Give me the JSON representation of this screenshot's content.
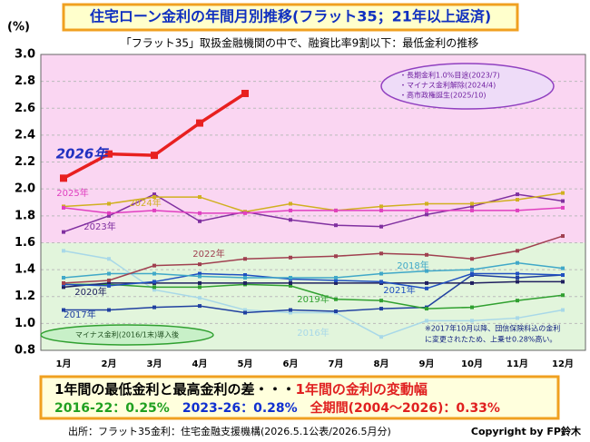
{
  "chart_data": {
    "type": "line",
    "title": "住宅ローン金利の年間月別推移(フラット35；21年以上返済)",
    "subtitle": "「フラット35」取扱金融機関の中で、融資比率9割以下：最低金利の推移",
    "y_label": "(%)",
    "categories": [
      "1月",
      "2月",
      "3月",
      "4月",
      "5月",
      "6月",
      "7月",
      "8月",
      "9月",
      "10月",
      "11月",
      "12月"
    ],
    "ylim": [
      0.8,
      3.0
    ],
    "yticks": [
      {
        "value": 0.8,
        "label": "0.8"
      },
      {
        "value": 1.0,
        "label": "1.0"
      },
      {
        "value": 1.2,
        "label": "1.2"
      },
      {
        "value": 1.4,
        "label": "1.4"
      },
      {
        "value": 1.6,
        "label": "1.6"
      },
      {
        "value": 1.8,
        "label": "1.8"
      },
      {
        "value": 2.0,
        "label": "2.0"
      },
      {
        "value": 2.2,
        "label": "2.2"
      },
      {
        "value": 2.4,
        "label": "2.4"
      },
      {
        "value": 2.6,
        "label": "2.6"
      },
      {
        "value": 2.8,
        "label": "2.8"
      },
      {
        "value": 3.0,
        "label": "3.0"
      }
    ],
    "bands": [
      {
        "from": 1.6,
        "to": 3.0,
        "color": "#fad6f2"
      },
      {
        "from": 0.8,
        "to": 1.6,
        "color": "#e2f5dc"
      }
    ],
    "series": [
      {
        "name": "2016年",
        "color": "#a8d8e8",
        "values": [
          1.54,
          1.48,
          1.25,
          1.19,
          1.1,
          1.08,
          1.08,
          0.9,
          1.02,
          1.02,
          1.04,
          1.1
        ]
      },
      {
        "name": "2017年",
        "color": "#2040a0",
        "values": [
          1.1,
          1.1,
          1.12,
          1.13,
          1.08,
          1.1,
          1.09,
          1.11,
          1.12,
          1.36,
          1.34,
          1.36
        ]
      },
      {
        "name": "2019年",
        "color": "#30a030",
        "values": [
          1.29,
          1.29,
          1.27,
          1.27,
          1.29,
          1.28,
          1.18,
          1.17,
          1.11,
          1.12,
          1.17,
          1.21
        ]
      },
      {
        "name": "2020年",
        "color": "#202060",
        "values": [
          1.27,
          1.3,
          1.3,
          1.3,
          1.3,
          1.3,
          1.3,
          1.3,
          1.3,
          1.3,
          1.31,
          1.31
        ]
      },
      {
        "name": "2021年",
        "color": "#2050c0",
        "values": [
          1.29,
          1.28,
          1.31,
          1.37,
          1.36,
          1.33,
          1.32,
          1.31,
          1.26,
          1.37,
          1.37,
          1.36
        ]
      },
      {
        "name": "2018年",
        "color": "#40a8c8",
        "values": [
          1.34,
          1.37,
          1.37,
          1.35,
          1.34,
          1.34,
          1.34,
          1.37,
          1.39,
          1.4,
          1.45,
          1.41
        ]
      },
      {
        "name": "2022年",
        "color": "#a04050",
        "values": [
          1.3,
          1.32,
          1.43,
          1.44,
          1.48,
          1.49,
          1.5,
          1.52,
          1.51,
          1.48,
          1.54,
          1.65
        ]
      },
      {
        "name": "2023年",
        "color": "#8030a0",
        "values": [
          1.68,
          1.8,
          1.96,
          1.76,
          1.83,
          1.77,
          1.73,
          1.72,
          1.81,
          1.87,
          1.96,
          1.91
        ]
      },
      {
        "name": "2024年",
        "color": "#d0b020",
        "values": [
          1.87,
          1.89,
          1.94,
          1.94,
          1.83,
          1.89,
          1.84,
          1.87,
          1.89,
          1.89,
          1.92,
          1.97
        ]
      },
      {
        "name": "2025年",
        "color": "#e040c0",
        "values": [
          1.86,
          1.82,
          1.84,
          1.82,
          1.82,
          1.84,
          1.84,
          1.84,
          1.84,
          1.84,
          1.84,
          1.86
        ]
      },
      {
        "name": "2026年",
        "color": "#e82020",
        "values": [
          2.08,
          2.26,
          2.25,
          2.49,
          2.71,
          null,
          null,
          null,
          null,
          null,
          null,
          null
        ]
      }
    ],
    "events": [
      "・長期金利1.0%目途(2023/7)",
      "・マイナス金利解除(2024/4)",
      "・高市政権誕生(2025/10)"
    ],
    "negative_rate_note": "マイナス金利(2016/1末)導入後",
    "footnote": [
      "※2017年10月以降、団信保険料込の金利",
      "に変更されたため、上乗せ0.28%高い。"
    ],
    "summary": {
      "heading": "1年間の最低金利と最高金利の差・・・",
      "heading_em": "1年間の金利の変動幅",
      "p1": "2016-22：0.25%",
      "p2": "2023-26：0.28%",
      "p3": "全期間(2004～2026)：0.33%"
    },
    "source": "出所：フラット35金利：住宅金融支援機構(2026.5.1公表/2026.5月分)",
    "copyright": "Copyright by FP鈴木"
  }
}
